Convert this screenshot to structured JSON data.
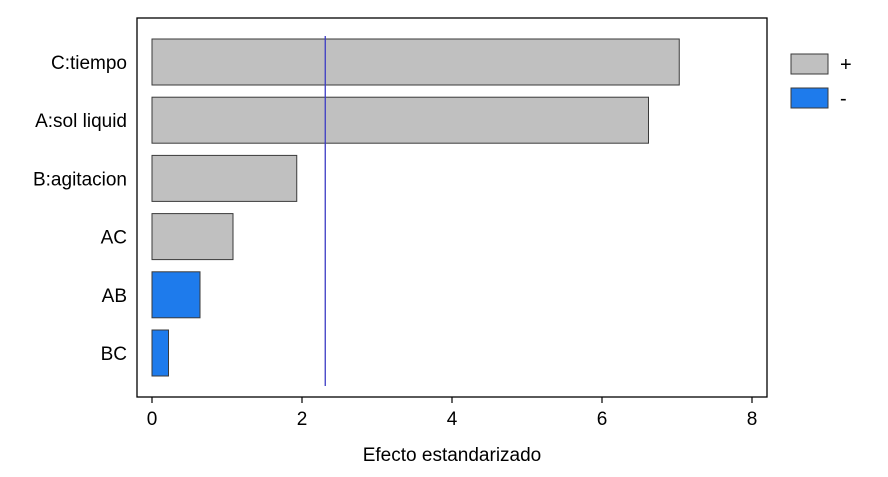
{
  "chart_data": {
    "type": "bar",
    "orientation": "horizontal",
    "title": "",
    "xlabel": "Efecto estandarizado",
    "ylabel": "",
    "categories": [
      "C:tiempo",
      "A:sol liquid",
      "B:agitacion",
      "AC",
      "AB",
      "BC"
    ],
    "values": [
      7.03,
      6.62,
      1.93,
      1.08,
      0.64,
      0.22
    ],
    "signs": [
      "+",
      "+",
      "+",
      "+",
      "-",
      "-"
    ],
    "xlim": [
      -0.2,
      8.2
    ],
    "xticks": [
      0,
      2,
      4,
      6,
      8
    ],
    "reference_line": 2.31,
    "grid": false,
    "legend": {
      "placement": "right-top",
      "entries": [
        {
          "label": "+",
          "color": "#c0c0c0"
        },
        {
          "label": "-",
          "color": "#1e7bec"
        }
      ]
    },
    "colors": {
      "positive": "#c0c0c0",
      "negative": "#1e7bec",
      "reference_line": "#3b3bc4",
      "bar_border": "#3a3a3a"
    }
  }
}
